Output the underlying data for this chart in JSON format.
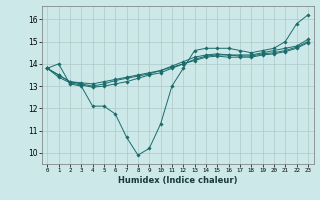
{
  "xlabel": "Humidex (Indice chaleur)",
  "ylabel": "",
  "bg_color": "#cce8e8",
  "grid_color": "#b0c8c8",
  "line_color": "#1a6b6b",
  "xlim": [
    -0.5,
    23.5
  ],
  "ylim": [
    9.5,
    16.6
  ],
  "xticks": [
    0,
    1,
    2,
    3,
    4,
    5,
    6,
    7,
    8,
    9,
    10,
    11,
    12,
    13,
    14,
    15,
    16,
    17,
    18,
    19,
    20,
    21,
    22,
    23
  ],
  "yticks": [
    10,
    11,
    12,
    13,
    14,
    15,
    16
  ],
  "lines": [
    {
      "x": [
        0,
        1,
        2,
        3,
        4,
        5,
        6,
        7,
        8,
        9,
        10,
        11,
        12,
        13,
        14,
        15,
        16,
        17,
        18,
        19,
        20,
        21,
        22,
        23
      ],
      "y": [
        13.8,
        14.0,
        13.1,
        13.0,
        12.1,
        12.1,
        11.75,
        10.7,
        9.9,
        10.2,
        11.3,
        13.0,
        13.8,
        14.6,
        14.7,
        14.7,
        14.7,
        14.6,
        14.5,
        14.6,
        14.7,
        15.0,
        15.8,
        16.2
      ]
    },
    {
      "x": [
        0,
        1,
        2,
        3,
        4,
        5,
        6,
        7,
        8,
        9,
        10,
        11,
        12,
        13,
        14,
        15,
        16,
        17,
        18,
        19,
        20,
        21,
        22,
        23
      ],
      "y": [
        13.8,
        13.5,
        13.2,
        13.15,
        13.1,
        13.2,
        13.3,
        13.4,
        13.5,
        13.6,
        13.7,
        13.9,
        14.1,
        14.3,
        14.4,
        14.45,
        14.4,
        14.4,
        14.4,
        14.5,
        14.6,
        14.7,
        14.8,
        15.1
      ]
    },
    {
      "x": [
        0,
        1,
        2,
        3,
        4,
        5,
        6,
        7,
        8,
        9,
        10,
        11,
        12,
        13,
        14,
        15,
        16,
        17,
        18,
        19,
        20,
        21,
        22,
        23
      ],
      "y": [
        13.8,
        13.5,
        13.2,
        13.1,
        13.0,
        13.1,
        13.25,
        13.35,
        13.45,
        13.55,
        13.7,
        13.85,
        14.0,
        14.2,
        14.35,
        14.4,
        14.4,
        14.35,
        14.35,
        14.45,
        14.5,
        14.6,
        14.75,
        15.0
      ]
    },
    {
      "x": [
        0,
        1,
        2,
        3,
        4,
        5,
        6,
        7,
        8,
        9,
        10,
        11,
        12,
        13,
        14,
        15,
        16,
        17,
        18,
        19,
        20,
        21,
        22,
        23
      ],
      "y": [
        13.8,
        13.4,
        13.15,
        13.05,
        12.95,
        13.0,
        13.1,
        13.2,
        13.35,
        13.5,
        13.6,
        13.8,
        14.0,
        14.15,
        14.3,
        14.35,
        14.3,
        14.3,
        14.3,
        14.4,
        14.45,
        14.55,
        14.7,
        14.95
      ]
    }
  ]
}
